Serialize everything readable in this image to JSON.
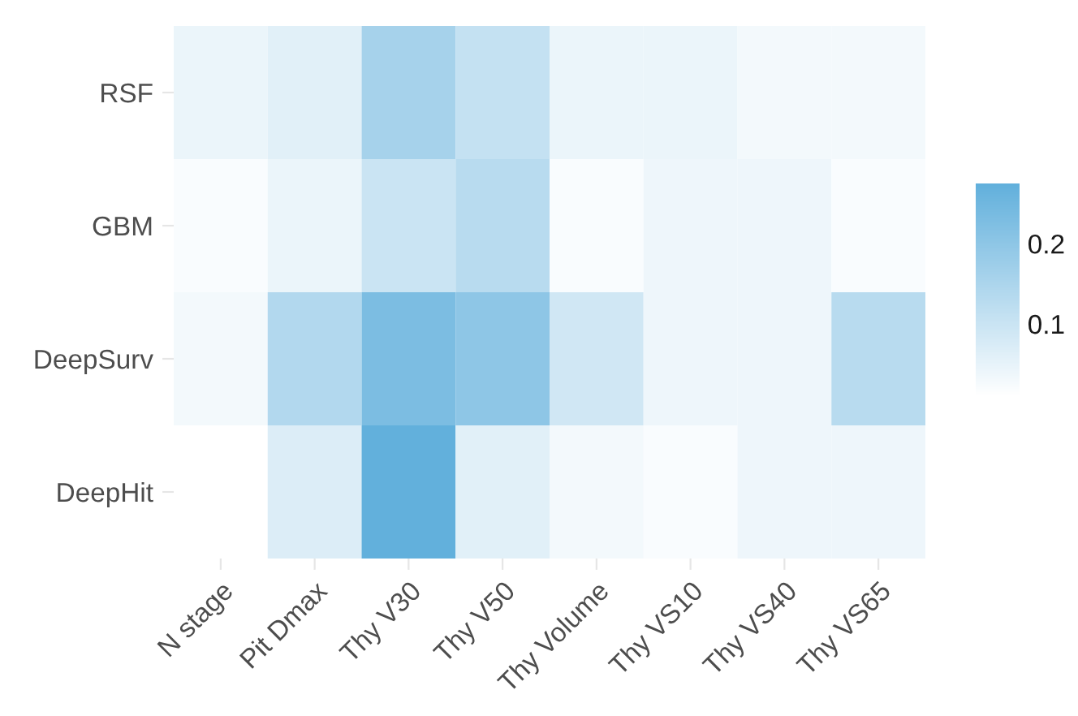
{
  "chart_data": {
    "type": "heatmap",
    "categories": [
      "N stage",
      "Pit Dmax",
      "Thy V30",
      "Thy V50",
      "Thy Volume",
      "Thy VS10",
      "Thy VS40",
      "Thy VS65"
    ],
    "y_categories": [
      "RSF",
      "GBM",
      "DeepSurv",
      "DeepHit"
    ],
    "cells": [
      [
        0.045,
        0.06,
        0.16,
        0.11,
        0.045,
        0.045,
        0.03,
        0.03
      ],
      [
        0.02,
        0.045,
        0.1,
        0.13,
        0.02,
        0.04,
        0.04,
        0.02
      ],
      [
        0.03,
        0.14,
        0.23,
        0.2,
        0.09,
        0.04,
        0.04,
        0.13
      ],
      [
        0.01,
        0.07,
        0.275,
        0.06,
        0.03,
        0.02,
        0.04,
        0.04
      ]
    ],
    "clim": [
      0.01,
      0.275
    ],
    "cticks": [
      0.1,
      0.2
    ],
    "colors": [
      "#ffffff",
      "#62b0dc"
    ],
    "grid": false
  }
}
